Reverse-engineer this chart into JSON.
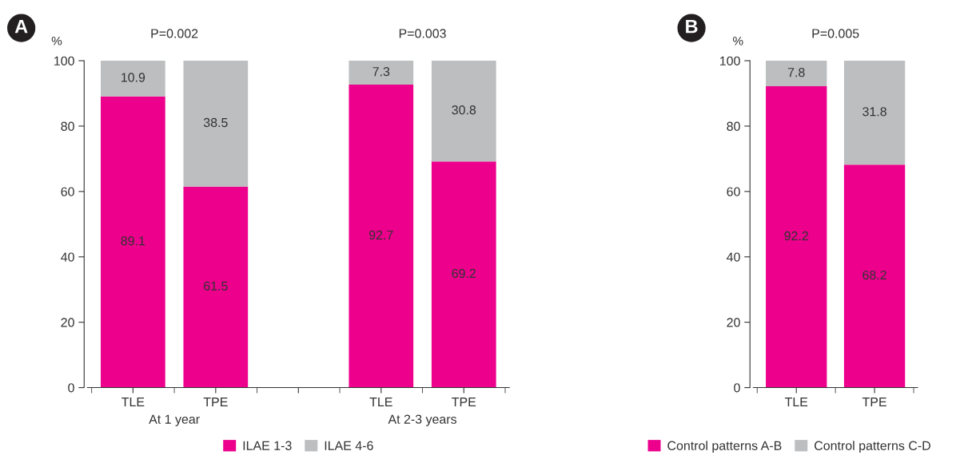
{
  "chart_data": [
    {
      "type": "bar",
      "stacked": true,
      "ylabel": "%",
      "categories": [
        "TLE",
        "TPE",
        null,
        "TLE",
        "TPE"
      ],
      "series": [
        {
          "name": "ILAE 1-3",
          "color": "#ec008c",
          "values": [
            89.1,
            61.5,
            null,
            92.7,
            69.2
          ]
        },
        {
          "name": "ILAE 4-6",
          "color": "#bcbec0",
          "values": [
            10.9,
            38.5,
            null,
            7.3,
            30.8
          ]
        }
      ],
      "ylim": [
        0,
        100
      ],
      "yticks": [
        0,
        20,
        40,
        60,
        80,
        100
      ],
      "data_labels": true,
      "legend": "bottom",
      "grid": false,
      "annotations": [
        "A",
        "P=0.002",
        "P=0.003",
        "At 1 year",
        "At 2-3 years"
      ]
    },
    {
      "type": "bar",
      "stacked": true,
      "ylabel": "%",
      "categories": [
        "TLE",
        "TPE"
      ],
      "series": [
        {
          "name": "Control patterns A-B",
          "color": "#ec008c",
          "values": [
            92.2,
            68.2
          ]
        },
        {
          "name": "Control patterns C-D",
          "color": "#bcbec0",
          "values": [
            7.8,
            31.8
          ]
        }
      ],
      "ylim": [
        0,
        100
      ],
      "yticks": [
        0,
        20,
        40,
        60,
        80,
        100
      ],
      "data_labels": true,
      "legend": "bottom",
      "grid": false,
      "annotations": [
        "B",
        "P=0.005"
      ]
    }
  ]
}
